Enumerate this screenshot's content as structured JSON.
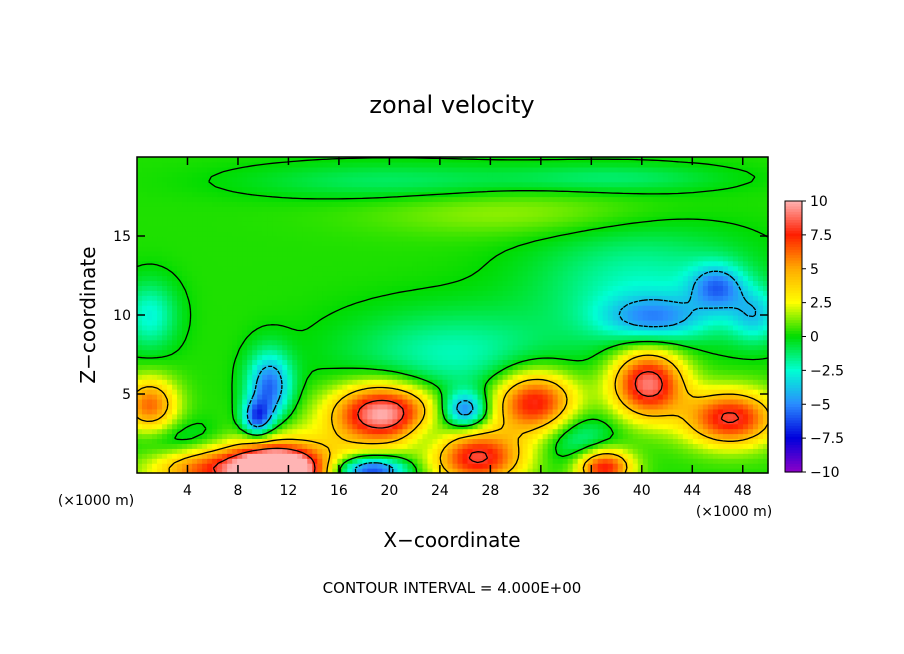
{
  "chart_data": {
    "type": "heatmap",
    "title": "zonal velocity",
    "xlabel": "X−coordinate",
    "ylabel": "Z−coordinate",
    "x_unit_left": "(×1000 m)",
    "x_unit_right": "(×1000 m)",
    "footer": "CONTOUR INTERVAL = 4.000E+00",
    "xlim": [
      0,
      50
    ],
    "ylim": [
      0,
      20
    ],
    "x_ticks": [
      4,
      8,
      12,
      16,
      20,
      24,
      28,
      32,
      36,
      40,
      44,
      48
    ],
    "x_tick_labels": [
      "4",
      "8",
      "12",
      "16",
      "20",
      "24",
      "28",
      "32",
      "36",
      "40",
      "44",
      "48"
    ],
    "y_ticks": [
      5,
      10,
      15
    ],
    "y_tick_labels": [
      "5",
      "10",
      "15"
    ],
    "colorbar": {
      "range": [
        -10,
        10
      ],
      "ticks": [
        10,
        7.5,
        5,
        2.5,
        0,
        -2.5,
        -5,
        -7.5,
        -10
      ],
      "tick_labels": [
        "10",
        "7.5",
        "5",
        "2.5",
        "0",
        "−2.5",
        "−5",
        "−7.5",
        "−10"
      ],
      "stops": [
        {
          "v": -10,
          "color": "#8c00c8"
        },
        {
          "v": -7.5,
          "color": "#0000dc"
        },
        {
          "v": -5,
          "color": "#2a8cff"
        },
        {
          "v": -2.5,
          "color": "#00ffd2"
        },
        {
          "v": 0,
          "color": "#00dc00"
        },
        {
          "v": 2.5,
          "color": "#ffff00"
        },
        {
          "v": 5,
          "color": "#ffaa00"
        },
        {
          "v": 7.5,
          "color": "#ff1e00"
        },
        {
          "v": 10,
          "color": "#ffb4b4"
        }
      ]
    },
    "background_value": 0.3,
    "features": [
      {
        "x": 11,
        "z": 0.2,
        "value": 12,
        "sx": 2.2,
        "sz": 0.9
      },
      {
        "x": 11,
        "z": 0.5,
        "value": 5,
        "sx": 4.5,
        "sz": 1.5
      },
      {
        "x": 5,
        "z": 0.4,
        "value": 5,
        "sx": 3,
        "sz": 1
      },
      {
        "x": 1,
        "z": 4.3,
        "value": 6,
        "sx": 1.5,
        "sz": 1.2
      },
      {
        "x": 19.5,
        "z": 3.8,
        "value": 10,
        "sx": 2.8,
        "sz": 1.3
      },
      {
        "x": 18.5,
        "z": 0.2,
        "value": -8,
        "sx": 2,
        "sz": 0.6
      },
      {
        "x": 27,
        "z": 1,
        "value": 8,
        "sx": 2.5,
        "sz": 1.2
      },
      {
        "x": 31.5,
        "z": 4.5,
        "value": 8,
        "sx": 2.3,
        "sz": 1.4
      },
      {
        "x": 37,
        "z": 0.4,
        "value": 8,
        "sx": 1.5,
        "sz": 0.8
      },
      {
        "x": 40.5,
        "z": 5.7,
        "value": 9,
        "sx": 2,
        "sz": 1.5
      },
      {
        "x": 47,
        "z": 3.5,
        "value": 8,
        "sx": 2.5,
        "sz": 1.2
      },
      {
        "x": 10.5,
        "z": 5.5,
        "value": -6,
        "sx": 1.2,
        "sz": 1.5
      },
      {
        "x": 9.5,
        "z": 3.5,
        "value": -6,
        "sx": 0.8,
        "sz": 0.8
      },
      {
        "x": 26,
        "z": 4,
        "value": -6,
        "sx": 1.2,
        "sz": 0.8
      },
      {
        "x": 46,
        "z": 11.8,
        "value": -4.5,
        "sx": 1.5,
        "sz": 1
      },
      {
        "x": 49,
        "z": 10,
        "value": -3.5,
        "sx": 1.5,
        "sz": 1.2
      },
      {
        "x": 41,
        "z": 9.8,
        "value": -4,
        "sx": 3,
        "sz": 1
      },
      {
        "x": 1,
        "z": 10,
        "value": -3,
        "sx": 1.5,
        "sz": 1.5
      },
      {
        "x": 4,
        "z": 1.8,
        "value": -2.5,
        "sx": 3,
        "sz": 1
      },
      {
        "x": 25,
        "z": 7.5,
        "value": -2.5,
        "sx": 6,
        "sz": 2
      },
      {
        "x": 40,
        "z": 12,
        "value": -2.5,
        "sx": 6,
        "sz": 2.5
      },
      {
        "x": 35,
        "z": 2.2,
        "value": -2.5,
        "sx": 2,
        "sz": 1.2
      },
      {
        "x": 23,
        "z": 2.5,
        "value": -2,
        "sx": 1.5,
        "sz": 1
      },
      {
        "x": 20,
        "z": 18.5,
        "value": -1.5,
        "sx": 8,
        "sz": 0.8
      },
      {
        "x": 38,
        "z": 18.7,
        "value": -1.5,
        "sx": 6,
        "sz": 0.6
      },
      {
        "x": 30,
        "z": 16.5,
        "value": 1.2,
        "sx": 8,
        "sz": 1
      }
    ]
  }
}
